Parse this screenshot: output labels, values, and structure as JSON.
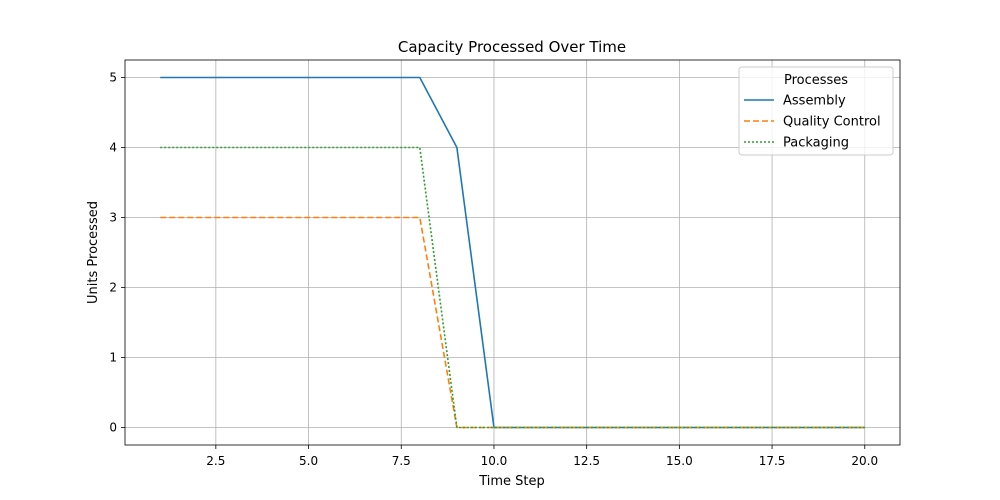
{
  "chart_data": {
    "type": "line",
    "title": "Capacity Processed Over Time",
    "xlabel": "Time Step",
    "ylabel": "Units Processed",
    "xlim": [
      0.05,
      20.95
    ],
    "ylim": [
      -0.25,
      5.25
    ],
    "xticks": [
      2.5,
      5.0,
      7.5,
      10.0,
      12.5,
      15.0,
      17.5,
      20.0
    ],
    "xtick_labels": [
      "2.5",
      "5.0",
      "7.5",
      "10.0",
      "12.5",
      "15.0",
      "17.5",
      "20.0"
    ],
    "yticks": [
      0,
      1,
      2,
      3,
      4,
      5
    ],
    "ytick_labels": [
      "0",
      "1",
      "2",
      "3",
      "4",
      "5"
    ],
    "grid": true,
    "legend": {
      "title": "Processes",
      "position": "top-right"
    },
    "x": [
      1,
      2,
      3,
      4,
      5,
      6,
      7,
      8,
      9,
      10,
      11,
      12,
      13,
      14,
      15,
      16,
      17,
      18,
      19,
      20
    ],
    "series": [
      {
        "name": "Assembly",
        "color": "#1f77b4",
        "style": "solid",
        "values": [
          5,
          5,
          5,
          5,
          5,
          5,
          5,
          5,
          4,
          0,
          0,
          0,
          0,
          0,
          0,
          0,
          0,
          0,
          0,
          0
        ]
      },
      {
        "name": "Quality Control",
        "color": "#ff7f0e",
        "style": "dashed",
        "values": [
          3,
          3,
          3,
          3,
          3,
          3,
          3,
          3,
          0,
          0,
          0,
          0,
          0,
          0,
          0,
          0,
          0,
          0,
          0,
          0
        ]
      },
      {
        "name": "Packaging",
        "color": "#2ca02c",
        "style": "dotted",
        "values": [
          4,
          4,
          4,
          4,
          4,
          4,
          4,
          4,
          0,
          0,
          0,
          0,
          0,
          0,
          0,
          0,
          0,
          0,
          0,
          0
        ]
      }
    ]
  }
}
